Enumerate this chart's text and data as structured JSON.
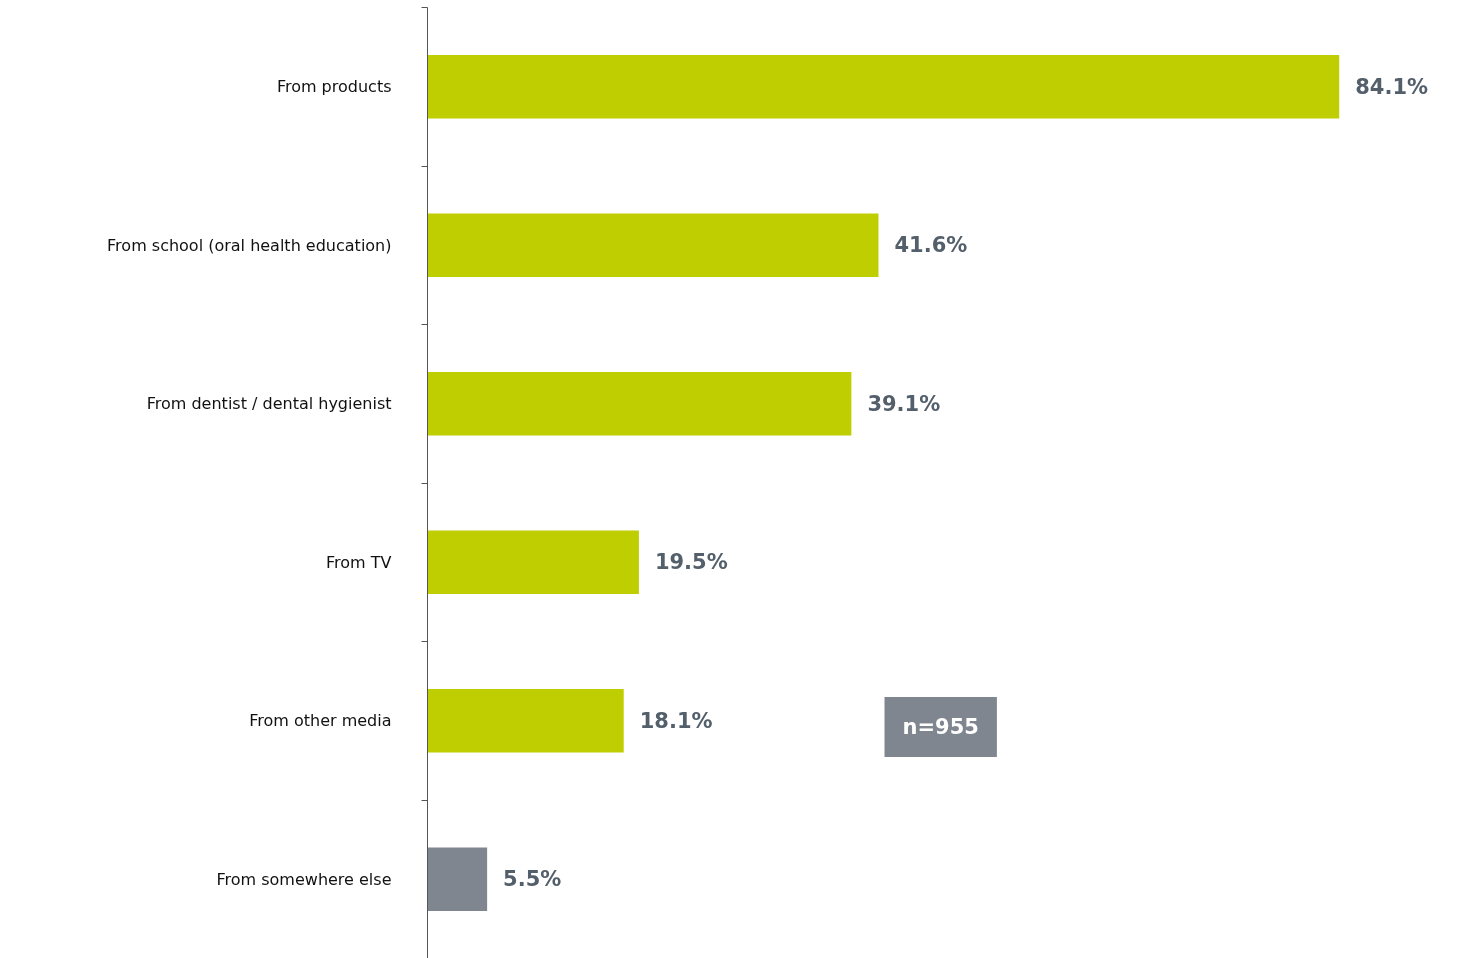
{
  "chart_data": {
    "type": "bar",
    "orientation": "horizontal",
    "categories": [
      "From products",
      "From school (oral health education)",
      "From dentist / dental hygienist",
      "From TV",
      "From other media",
      "From somewhere else"
    ],
    "values": [
      84.1,
      41.6,
      39.1,
      19.5,
      18.1,
      5.5
    ],
    "value_labels": [
      "84.1%",
      "41.6%",
      "39.1%",
      "19.5%",
      "18.1%",
      "5.5%"
    ],
    "colors": [
      "#bfce00",
      "#bfce00",
      "#bfce00",
      "#bfce00",
      "#bfce00",
      "#80868f"
    ],
    "annotations": [
      "n=955"
    ]
  }
}
